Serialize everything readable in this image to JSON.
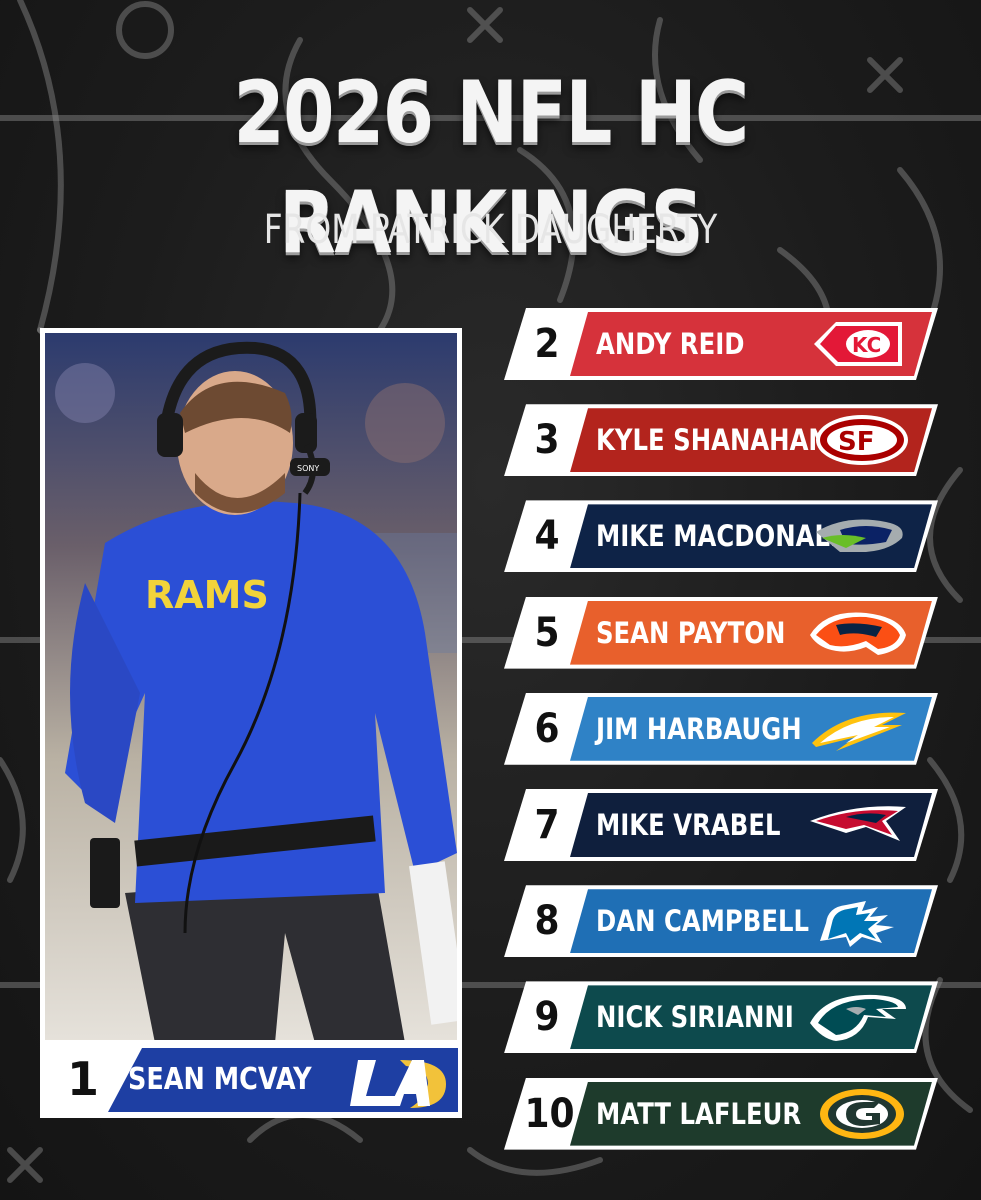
{
  "header": {
    "title": "2026 NFL HC RANKINGS",
    "subtitle": "FROM PATRICK DAUGHERTY"
  },
  "feature": {
    "rank": "1",
    "name": "SEAN MCVAY",
    "team_logo": "rams-la-logo",
    "color": "#1e3fa3",
    "shirt_text": "RAMS",
    "headset_text": "SONY"
  },
  "rankings": [
    {
      "rank": "2",
      "name": "ANDY REID",
      "color": "#d6323b",
      "logo": "chiefs-logo"
    },
    {
      "rank": "3",
      "name": "KYLE SHANAHAN",
      "color": "#b3241d",
      "logo": "49ers-logo"
    },
    {
      "rank": "4",
      "name": "MIKE MACDONALD",
      "color": "#0e2347",
      "logo": "seahawks-logo"
    },
    {
      "rank": "5",
      "name": "SEAN PAYTON",
      "color": "#e8602c",
      "logo": "broncos-logo"
    },
    {
      "rank": "6",
      "name": "JIM HARBAUGH",
      "color": "#2f82c6",
      "logo": "chargers-logo"
    },
    {
      "rank": "7",
      "name": "MIKE VRABEL",
      "color": "#0f1f3d",
      "logo": "patriots-logo"
    },
    {
      "rank": "8",
      "name": "DAN CAMPBELL",
      "color": "#1f6fb5",
      "logo": "lions-logo"
    },
    {
      "rank": "9",
      "name": "NICK SIRIANNI",
      "color": "#0d4a4d",
      "logo": "eagles-logo"
    },
    {
      "rank": "10",
      "name": "MATT LAFLEUR",
      "color": "#1e3b2c",
      "logo": "packers-logo"
    }
  ]
}
